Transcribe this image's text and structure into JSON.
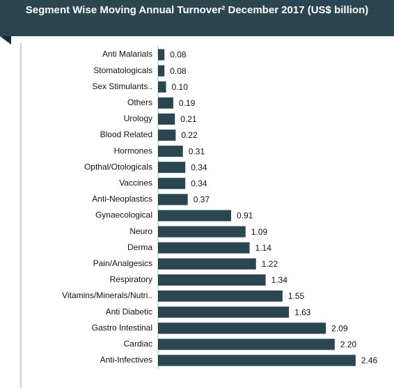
{
  "chart_data": {
    "type": "bar",
    "orientation": "horizontal",
    "title": "Segment Wise Moving Annual Turnover² December 2017 (US$ billion)",
    "categories": [
      "Anti Malarials",
      "Stomatologicals",
      "Sex Stimulants..",
      "Others",
      "Urology",
      "Blood Related",
      "Hormones",
      "Opthal/Otologicals",
      "Vaccines",
      "Anti-Neoplastics",
      "Gynaecological",
      "Neuro",
      "Derma",
      "Pain/Analgesics",
      "Respiratory",
      "Vitamins/Minerals/Nutri..",
      "Anti Diabetic",
      "Gastro Intestinal",
      "Cardiac",
      "Anti-Infectives"
    ],
    "values": [
      0.08,
      0.08,
      0.1,
      0.19,
      0.21,
      0.22,
      0.31,
      0.34,
      0.34,
      0.37,
      0.91,
      1.09,
      1.14,
      1.22,
      1.34,
      1.55,
      1.63,
      2.09,
      2.2,
      2.46
    ],
    "value_labels": [
      "0.08",
      "0.08",
      "0.10",
      "0.19",
      "0.21",
      "0.22",
      "0.31",
      "0.34",
      "0.34",
      "0.37",
      "0.91",
      "1.09",
      "1.14",
      "1.22",
      "1.34",
      "1.55",
      "1.63",
      "2.09",
      "2.20",
      "2.46"
    ],
    "color": "#2b4650",
    "xlim": [
      0,
      2.6
    ]
  }
}
